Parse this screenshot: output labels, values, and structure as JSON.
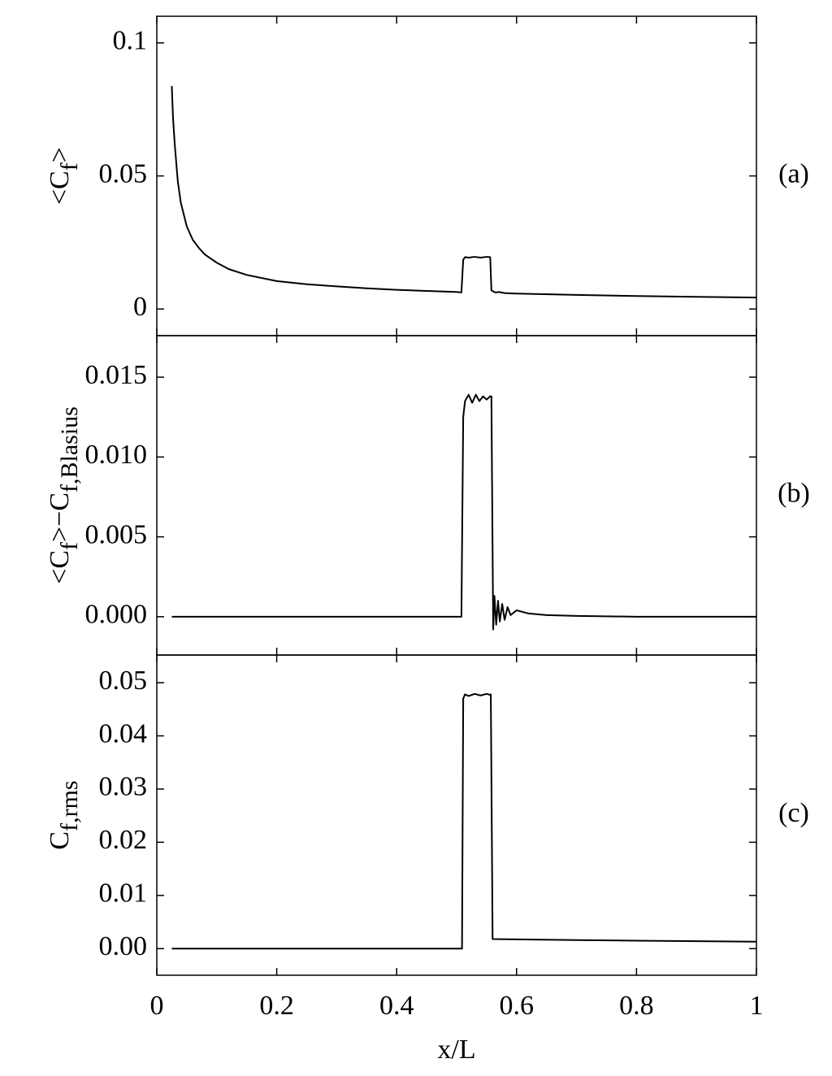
{
  "chart_data": [
    {
      "type": "line",
      "color": "#000000",
      "y_label": [
        {
          "text": "<C"
        },
        {
          "text": "f",
          "sub": true
        },
        {
          "text": ">"
        }
      ],
      "annotation": "(a)",
      "x": [
        0.025,
        0.027,
        0.03,
        0.035,
        0.04,
        0.05,
        0.06,
        0.07,
        0.08,
        0.1,
        0.12,
        0.15,
        0.2,
        0.25,
        0.3,
        0.35,
        0.4,
        0.45,
        0.5,
        0.508,
        0.511,
        0.514,
        0.52,
        0.53,
        0.54,
        0.55,
        0.556,
        0.558,
        0.561,
        0.565,
        0.57,
        0.58,
        0.6,
        0.7,
        0.8,
        0.9,
        1.0
      ],
      "values": [
        0.0838,
        0.072,
        0.0616,
        0.048,
        0.04,
        0.031,
        0.026,
        0.023,
        0.0205,
        0.0174,
        0.015,
        0.0128,
        0.0105,
        0.0093,
        0.0085,
        0.0078,
        0.0072,
        0.0068,
        0.0064,
        0.0062,
        0.0185,
        0.0195,
        0.0193,
        0.0196,
        0.0193,
        0.0196,
        0.0195,
        0.007,
        0.0066,
        0.0062,
        0.0064,
        0.006,
        0.0058,
        0.0053,
        0.0049,
        0.0046,
        0.0043
      ],
      "xlim": [
        0,
        1
      ],
      "xticks": [
        0,
        0.2,
        0.4,
        0.6,
        0.8,
        1
      ],
      "ylim": [
        -0.01,
        0.11
      ],
      "yticks": [
        0,
        0.05,
        0.1
      ]
    },
    {
      "type": "line",
      "color": "#000000",
      "y_label": [
        {
          "text": "<C"
        },
        {
          "text": "f",
          "sub": true
        },
        {
          "text": ">−C"
        },
        {
          "text": "f,Blasius",
          "sub": true
        }
      ],
      "annotation": "(b)",
      "x": [
        0.025,
        0.1,
        0.3,
        0.5,
        0.508,
        0.511,
        0.514,
        0.52,
        0.526,
        0.532,
        0.538,
        0.544,
        0.55,
        0.556,
        0.558,
        0.561,
        0.563,
        0.566,
        0.569,
        0.572,
        0.576,
        0.58,
        0.585,
        0.59,
        0.6,
        0.62,
        0.65,
        0.7,
        0.8,
        1.0
      ],
      "values": [
        0,
        0,
        0,
        0,
        0,
        0.0125,
        0.0135,
        0.0139,
        0.0134,
        0.0139,
        0.0135,
        0.0138,
        0.0136,
        0.0138,
        0.0138,
        -0.0008,
        0.0013,
        -0.0005,
        0.001,
        -0.0003,
        0.0008,
        -0.0002,
        0.0006,
        0.0001,
        0.0004,
        0.0002,
        0.0001,
        5e-05,
        0,
        0
      ],
      "xlim": [
        0,
        1
      ],
      "xticks": [
        0,
        0.2,
        0.4,
        0.6,
        0.8,
        1
      ],
      "ylim": [
        -0.0024,
        0.0176
      ],
      "yticks": [
        {
          "value": 0,
          "label": "0.000"
        },
        0.005,
        {
          "value": 0.01,
          "label": "0.010"
        },
        0.015
      ]
    },
    {
      "type": "line",
      "color": "#000000",
      "y_label": [
        {
          "text": "C"
        },
        {
          "text": "f,rms",
          "sub": true
        }
      ],
      "annotation": "(c)",
      "x_label": "x/L",
      "x": [
        0.025,
        0.2,
        0.5,
        0.509,
        0.511,
        0.514,
        0.52,
        0.53,
        0.54,
        0.55,
        0.556,
        0.557,
        0.56,
        0.7,
        0.8,
        1.0
      ],
      "values": [
        0,
        0,
        0,
        0,
        0.047,
        0.0478,
        0.0475,
        0.0479,
        0.0476,
        0.0479,
        0.0477,
        0.0478,
        0.0018,
        0.0016,
        0.0015,
        0.0013
      ],
      "xlim": [
        0,
        1
      ],
      "xticks": [
        0,
        0.2,
        0.4,
        0.6,
        0.8,
        1
      ],
      "ylim": [
        -0.005,
        0.0552
      ],
      "yticks": [
        {
          "value": 0,
          "label": "0.00"
        },
        0.01,
        0.02,
        0.03,
        0.04,
        0.05
      ]
    }
  ]
}
